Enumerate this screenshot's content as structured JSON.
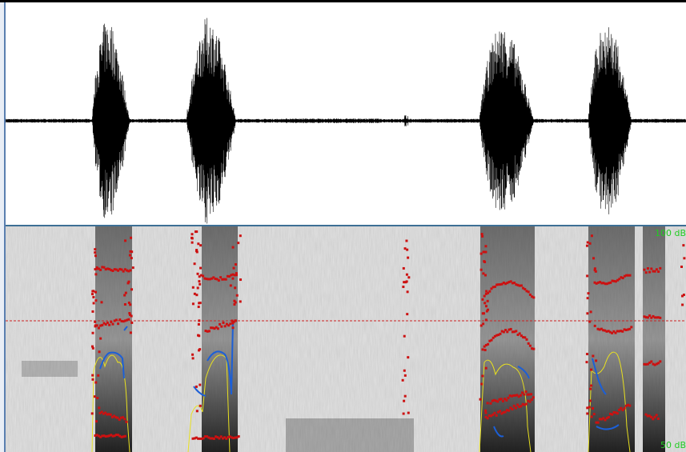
{
  "spectrogram": {
    "db_top_label": "100 dB",
    "db_bottom_label": "50 dB"
  },
  "colors": {
    "waveform": "#000000",
    "formant_points": "#cc1111",
    "pitch_contour": "#1c5fd6",
    "intensity_curve": "#e8e020",
    "cursor_line": "#cc2222",
    "separator": "#3d6f95",
    "db_labels": "#22cc22"
  },
  "icons": {
    "left_edge": "pane-edge"
  }
}
